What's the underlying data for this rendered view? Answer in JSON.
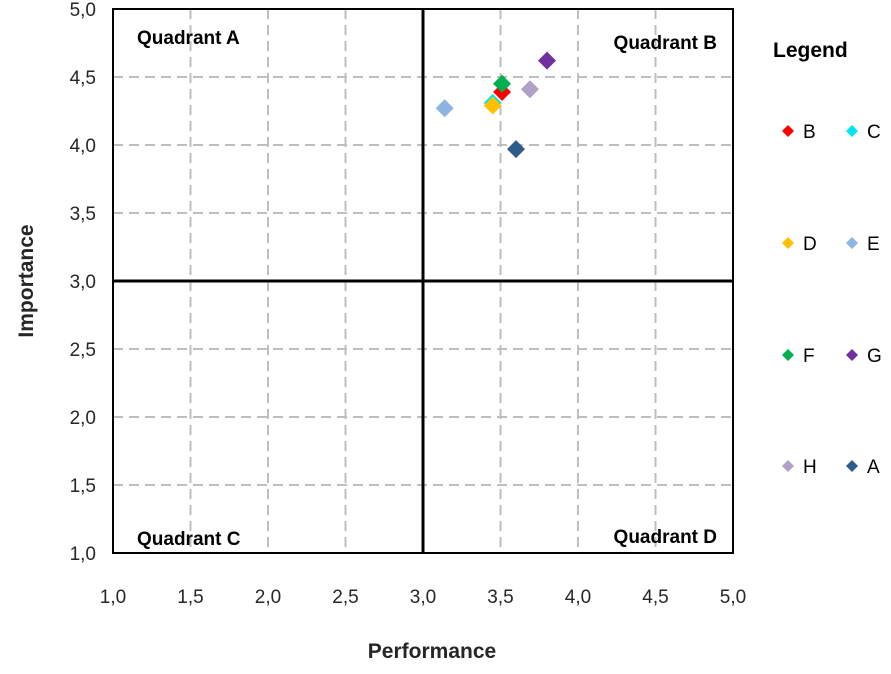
{
  "chart_data": {
    "type": "scatter",
    "title": "",
    "xlabel": "Performance",
    "ylabel": "Importance",
    "xlim": [
      1.0,
      5.0
    ],
    "ylim": [
      1.0,
      5.0
    ],
    "xticks": [
      "1,0",
      "1,5",
      "2,0",
      "2,5",
      "3,0",
      "3,5",
      "4,0",
      "4,5",
      "5,0"
    ],
    "yticks": [
      "1,0",
      "1,5",
      "2,0",
      "2,5",
      "3,0",
      "3,5",
      "4,0",
      "4,5",
      "5,0"
    ],
    "grid": true,
    "quadrant_lines": {
      "x": 3.0,
      "y": 3.0
    },
    "quadrant_labels": {
      "top_left": "Quadrant A",
      "top_right": "Quadrant B",
      "bottom_left": "Quadrant C",
      "bottom_right": "Quadrant D"
    },
    "legend": {
      "title": "Legend",
      "placement": "right",
      "order": [
        "B",
        "C",
        "D",
        "E",
        "F",
        "G",
        "H",
        "A"
      ]
    },
    "series": [
      {
        "name": "B",
        "color": "#ff0000",
        "x": [
          3.51
        ],
        "y": [
          4.39
        ]
      },
      {
        "name": "C",
        "color": "#00e5ee",
        "x": [
          3.45
        ],
        "y": [
          4.31
        ]
      },
      {
        "name": "D",
        "color": "#ffc000",
        "x": [
          3.45
        ],
        "y": [
          4.29
        ]
      },
      {
        "name": "E",
        "color": "#8db4e2",
        "x": [
          3.14
        ],
        "y": [
          4.27
        ]
      },
      {
        "name": "F",
        "color": "#00b050",
        "x": [
          3.51
        ],
        "y": [
          4.45
        ]
      },
      {
        "name": "G",
        "color": "#7030a0",
        "x": [
          3.8
        ],
        "y": [
          4.62
        ]
      },
      {
        "name": "H",
        "color": "#b1a0c7",
        "x": [
          3.69
        ],
        "y": [
          4.41
        ]
      },
      {
        "name": "A",
        "color": "#2e5c8a",
        "x": [
          3.6
        ],
        "y": [
          3.97
        ]
      }
    ]
  }
}
